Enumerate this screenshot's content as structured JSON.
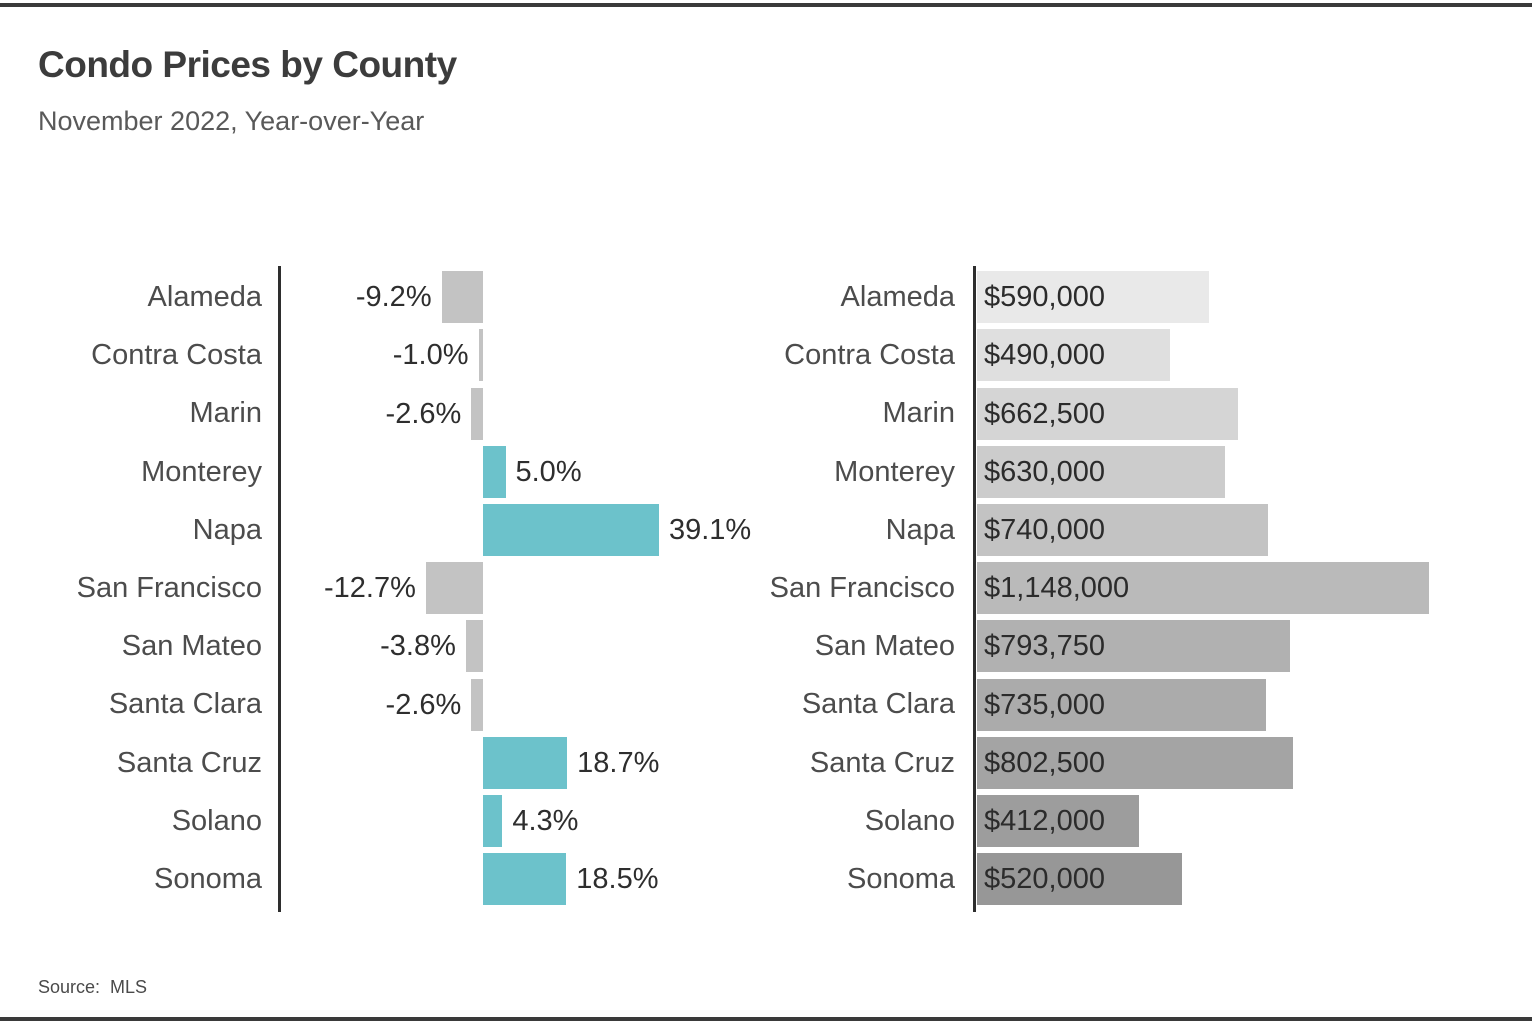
{
  "header": {
    "title": "Condo Prices by County",
    "subtitle": "November 2022, Year-over-Year"
  },
  "footer": {
    "source_label": "Source:",
    "source_value": "MLS"
  },
  "colors": {
    "positive_bar": "#6cc2cb",
    "negative_bar": "#c3c3c3",
    "axis_line": "#2e2e2e",
    "page_rule": "#3a3a3a",
    "price_bar_shades": [
      "#e9e9e9",
      "#dfdfdf",
      "#d5d5d5",
      "#cccccc",
      "#c3c3c3",
      "#bababa",
      "#b1b1b1",
      "#ababab",
      "#a4a4a4",
      "#9d9d9d",
      "#979797"
    ]
  },
  "chart_data": [
    {
      "type": "bar",
      "orientation": "horizontal",
      "title": "Condo Prices by County",
      "subtitle": "November 2022, Year-over-Year",
      "categories": [
        "Alameda",
        "Contra Costa",
        "Marin",
        "Monterey",
        "Napa",
        "San Francisco",
        "San Mateo",
        "Santa Clara",
        "Santa Cruz",
        "Solano",
        "Sonoma"
      ],
      "series": [
        {
          "name": "Year-over-Year change (%)",
          "values": [
            -9.2,
            -1.0,
            -2.6,
            5.0,
            39.1,
            -12.7,
            -3.8,
            -2.6,
            18.7,
            4.3,
            18.5
          ],
          "labels": [
            "-9.2%",
            "-1.0%",
            "-2.6%",
            "5.0%",
            "39.1%",
            "-12.7%",
            "-3.8%",
            "-2.6%",
            "18.7%",
            "4.3%",
            "18.5%"
          ]
        },
        {
          "name": "Median condo price ($)",
          "values": [
            590000,
            490000,
            662500,
            630000,
            740000,
            1148000,
            793750,
            735000,
            802500,
            412000,
            520000
          ],
          "labels": [
            "$590,000",
            "$490,000",
            "$662,500",
            "$630,000",
            "$740,000",
            "$1,148,000",
            "$793,750",
            "$735,000",
            "$802,500",
            "$412,000",
            "$520,000"
          ]
        }
      ],
      "layout_hints": {
        "value_axis_ticks": "hidden",
        "gridlines": "off",
        "pct_labels_position": "outside bar end",
        "price_labels_position": "inside bar start",
        "negative_bars_color": "gray",
        "positive_bars_color": "teal",
        "price_bars_color_ramp": "light gray (top) to dark gray (bottom)"
      }
    }
  ]
}
